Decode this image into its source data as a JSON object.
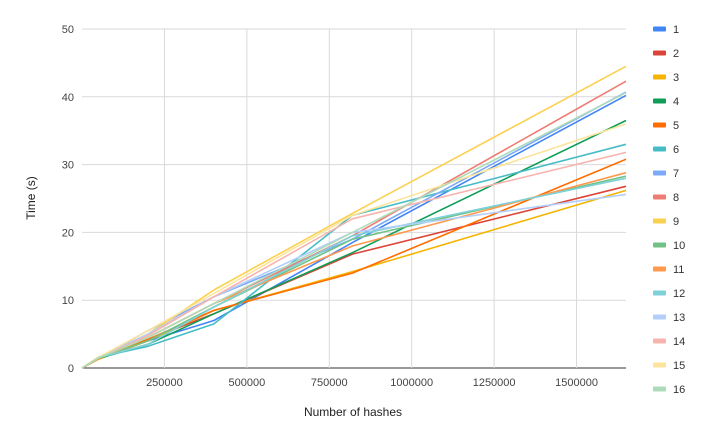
{
  "chart_data": {
    "type": "line",
    "title": "",
    "xlabel": "Number of hashes",
    "ylabel": "Time (s)",
    "xlim": [
      0,
      1650000
    ],
    "ylim": [
      0,
      50
    ],
    "x_ticks": [
      "250000",
      "500000",
      "750000",
      "1000000",
      "1250000",
      "1500000"
    ],
    "y_ticks": [
      "0",
      "10",
      "20",
      "30",
      "40",
      "50"
    ],
    "grid": true,
    "legend_position": "right",
    "x": [
      0,
      50000,
      200000,
      400000,
      820000,
      1650000
    ],
    "series": [
      {
        "name": "1",
        "color": "#4285F4",
        "values": [
          0,
          1.5,
          4.0,
          7.0,
          18.5,
          40.2
        ]
      },
      {
        "name": "2",
        "color": "#DB4437",
        "values": [
          0,
          1.5,
          4.2,
          8.0,
          16.8,
          26.8
        ]
      },
      {
        "name": "3",
        "color": "#F4B400",
        "values": [
          0,
          1.3,
          4.0,
          8.5,
          14.2,
          26.2
        ]
      },
      {
        "name": "4",
        "color": "#0F9D58",
        "values": [
          0,
          1.4,
          3.5,
          8.0,
          17.0,
          36.5
        ]
      },
      {
        "name": "5",
        "color": "#FF6D01",
        "values": [
          0,
          1.5,
          4.2,
          8.5,
          14.0,
          30.8
        ]
      },
      {
        "name": "6",
        "color": "#46BDC6",
        "values": [
          0,
          1.6,
          3.2,
          6.5,
          22.5,
          33.0
        ]
      },
      {
        "name": "7",
        "color": "#7BAAF7",
        "values": [
          0,
          1.5,
          5.5,
          10.5,
          19.0,
          40.7
        ]
      },
      {
        "name": "8",
        "color": "#F07B72",
        "values": [
          0,
          1.4,
          4.5,
          9.5,
          19.5,
          42.3
        ]
      },
      {
        "name": "9",
        "color": "#FCD04F",
        "values": [
          0,
          1.6,
          5.0,
          11.5,
          22.8,
          44.5
        ]
      },
      {
        "name": "10",
        "color": "#71C287",
        "values": [
          0,
          1.5,
          4.0,
          9.0,
          19.0,
          28.3
        ]
      },
      {
        "name": "11",
        "color": "#FF994D",
        "values": [
          0,
          1.4,
          4.5,
          9.5,
          18.0,
          28.8
        ]
      },
      {
        "name": "12",
        "color": "#7ED1D7",
        "values": [
          0,
          1.5,
          3.5,
          9.0,
          19.5,
          28.0
        ]
      },
      {
        "name": "13",
        "color": "#B3CEFB",
        "values": [
          0,
          1.6,
          5.0,
          10.5,
          20.0,
          25.6
        ]
      },
      {
        "name": "14",
        "color": "#F7B4AE",
        "values": [
          0,
          1.5,
          4.8,
          10.5,
          22.0,
          31.8
        ]
      },
      {
        "name": "15",
        "color": "#FDE49B",
        "values": [
          0,
          1.6,
          5.5,
          11.0,
          22.5,
          36.0
        ]
      },
      {
        "name": "16",
        "color": "#AEDCBA",
        "values": [
          0,
          1.5,
          4.5,
          9.5,
          20.0,
          40.6
        ]
      }
    ]
  }
}
